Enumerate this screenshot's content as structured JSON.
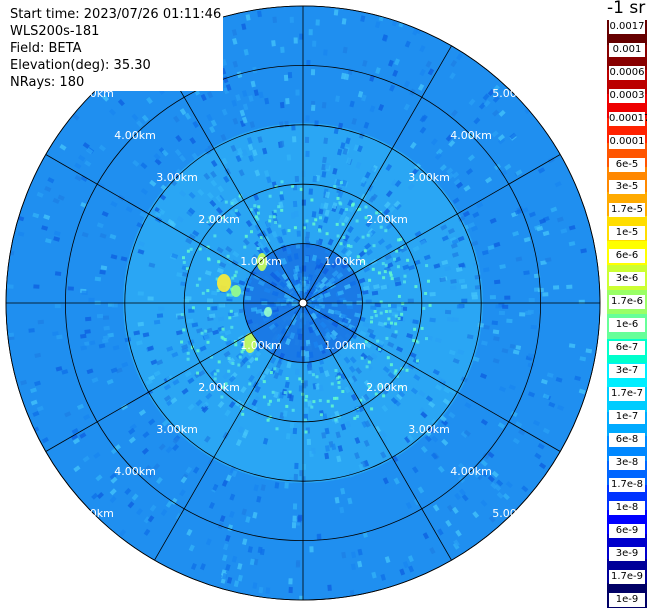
{
  "info": {
    "start_time": "Start time: 2023/07/26 01:11:46",
    "instrument": "WLS200s-181",
    "field": "Field: BETA",
    "elevation": "Elevation(deg): 35.30",
    "nrays": "NRays: 180"
  },
  "unit_label": "-1 sr",
  "range_rings": {
    "labels": [
      "1.00km",
      "2.00km",
      "3.00km",
      "4.00km",
      "5.00km"
    ]
  },
  "colorbar": {
    "colors": [
      "#000066",
      "#000099",
      "#0000cc",
      "#0000ff",
      "#0033ff",
      "#0066ff",
      "#0088ff",
      "#00aaff",
      "#00ccff",
      "#00eeff",
      "#00ffcc",
      "#66ff99",
      "#99ff66",
      "#ccff33",
      "#ffff00",
      "#ffdd00",
      "#ffaa00",
      "#ff8800",
      "#ff5500",
      "#ff2200",
      "#ee0000",
      "#bb0000",
      "#880000",
      "#660000"
    ],
    "tick_labels": [
      "0.0017",
      "0.001",
      "0.0006",
      "0.0003",
      "0.00017",
      "0.0001",
      "6e-5",
      "3e-5",
      "1.7e-5",
      "1e-5",
      "6e-6",
      "3e-6",
      "1.7e-6",
      "1e-6",
      "6e-7",
      "3e-7",
      "1.7e-7",
      "1e-7",
      "6e-8",
      "3e-8",
      "1.7e-8",
      "1e-8",
      "6e-9",
      "3e-9",
      "1.7e-9",
      "1e-9"
    ]
  }
}
